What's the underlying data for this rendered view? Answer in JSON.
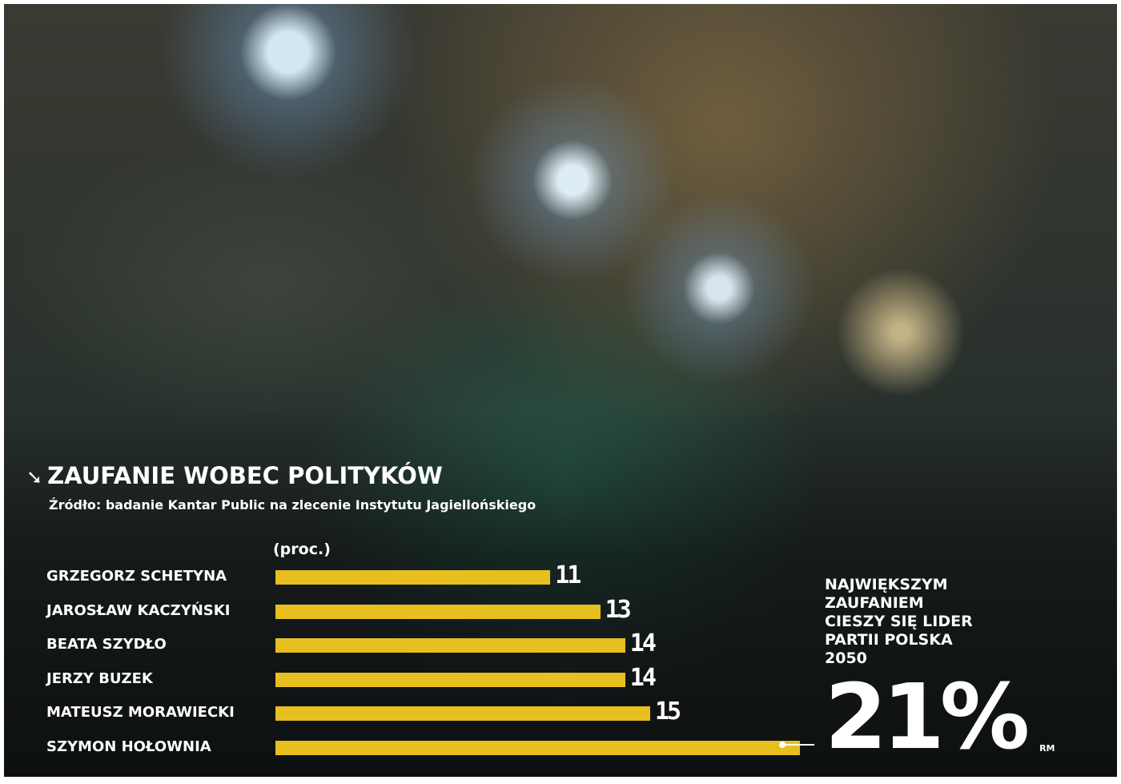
{
  "chart_data": {
    "type": "bar",
    "orientation": "horizontal",
    "title": "ZAUFANIE WOBEC POLITYKÓW",
    "subtitle": "Źródło: badanie Kantar Public na zlecenie Instytutu Jagiellońskiego",
    "unit": "(proc.)",
    "categories": [
      "GRZEGORZ SCHETYNA",
      "JAROSŁAW KACZYŃSKI",
      "BEATA SZYDŁO",
      "JERZY BUZEK",
      "MATEUSZ MORAWIECKI",
      "SZYMON HOŁOWNIA"
    ],
    "values": [
      11,
      13,
      14,
      14,
      15,
      21
    ],
    "bar_color": "#e7bf1e",
    "xlim": [
      0,
      21
    ]
  },
  "callout": {
    "text": "NAJWIĘKSZYM ZAUFANIEM CIESZY SIĘ LIDER PARTII POLSKA 2050",
    "value": "21%"
  },
  "credit": "RM",
  "icons": {
    "title_icon": "arrow-down-right-icon"
  }
}
